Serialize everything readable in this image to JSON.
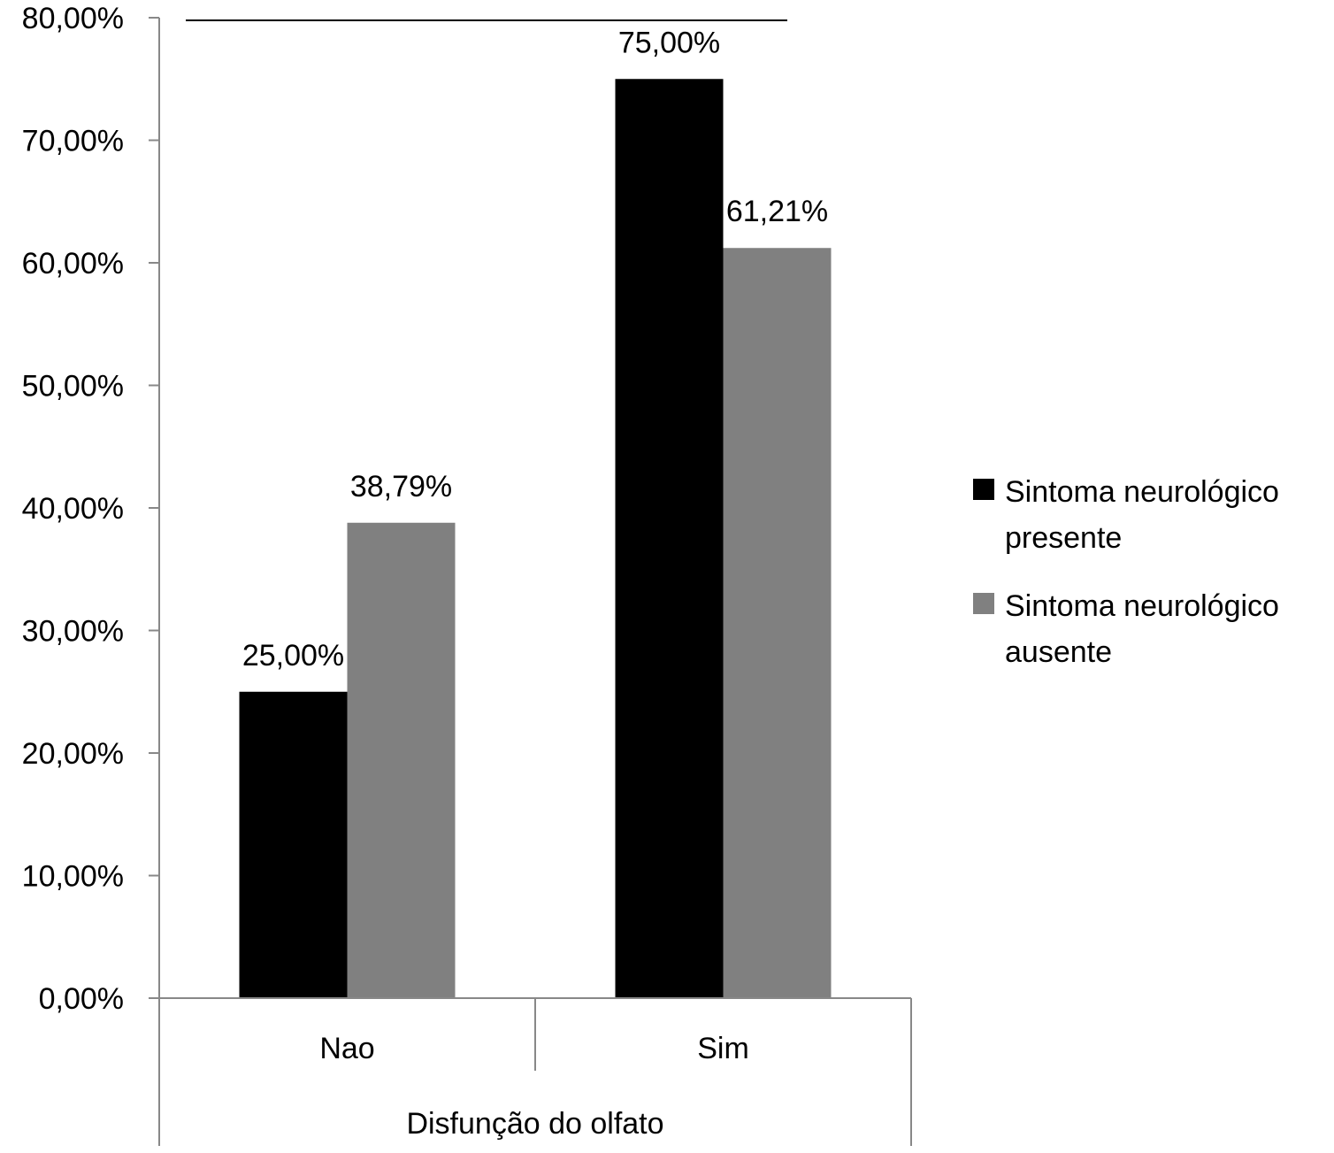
{
  "chart_data": {
    "type": "bar",
    "title": "",
    "ylabel": "",
    "xlabel": "Disfunção do olfato",
    "categories": [
      "Nao",
      "Sim"
    ],
    "series": [
      {
        "name": "Sintoma neurológico presente",
        "name_lines": [
          "Sintoma neurológico",
          "presente"
        ],
        "color": "#000000",
        "values": [
          25.0,
          75.0
        ],
        "labels": [
          "25,00%",
          "75,00%"
        ]
      },
      {
        "name": "Sintoma neurológico ausente",
        "name_lines": [
          "Sintoma neurológico",
          "ausente"
        ],
        "color": "#808080",
        "values": [
          38.79,
          61.21
        ],
        "labels": [
          "38,79%",
          "61,21%"
        ]
      }
    ],
    "ylim": [
      0,
      80
    ],
    "yticks": [
      0,
      10,
      20,
      30,
      40,
      50,
      60,
      70,
      80
    ],
    "ytick_labels": [
      "0,00%",
      "10,00%",
      "20,00%",
      "30,00%",
      "40,00%",
      "50,00%",
      "60,00%",
      "70,00%",
      "80,00%"
    ],
    "significance_bar": true,
    "grid": false,
    "legend_position": "right"
  }
}
